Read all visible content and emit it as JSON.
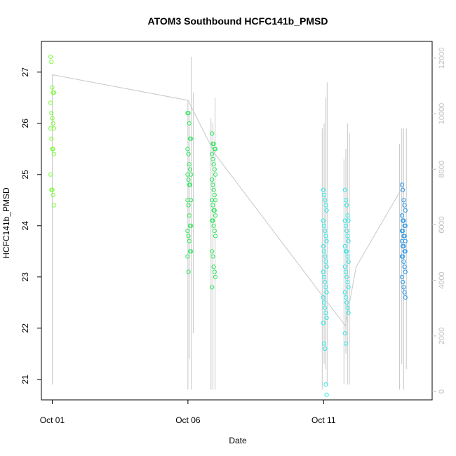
{
  "chart_data": {
    "type": "scatter",
    "title": "ATOM3 Southbound HCFC141b_PMSD",
    "xlabel": "Date",
    "ylabel": "HCFC141b_PMSD",
    "x_ticks": [
      {
        "label": "Oct 01",
        "day": 1.0
      },
      {
        "label": "Oct 06",
        "day": 6.0
      },
      {
        "label": "Oct 11",
        "day": 11.0
      }
    ],
    "xlim_days": [
      0.6,
      15.0
    ],
    "ylim": [
      20.6,
      27.6
    ],
    "y_ticks": [
      21,
      22,
      23,
      24,
      25,
      26,
      27
    ],
    "right_axis": {
      "ylim": [
        -300,
        12600
      ],
      "ticks": [
        0,
        2000,
        4000,
        6000,
        8000,
        10000,
        12000
      ],
      "color": "#c0c0c0"
    },
    "line_color": "#c8c8c8",
    "trend_line": [
      {
        "day": 1.0,
        "y": 26.95
      },
      {
        "day": 6.0,
        "y": 26.45
      },
      {
        "day": 7.0,
        "y": 25.4
      },
      {
        "day": 11.0,
        "y": 22.6
      },
      {
        "day": 11.8,
        "y": 22.05
      },
      {
        "day": 12.2,
        "y": 23.2
      },
      {
        "day": 13.9,
        "y": 24.75
      }
    ],
    "vertical_series": [
      {
        "day": 1.0,
        "low": 20.9,
        "high": 26.95
      },
      {
        "day": 6.0,
        "low": 20.8,
        "high": 26.45
      },
      {
        "day": 6.05,
        "low": 21.4,
        "high": 26.2
      },
      {
        "day": 6.12,
        "low": 20.8,
        "high": 27.3
      },
      {
        "day": 6.2,
        "low": 21.9,
        "high": 26.6
      },
      {
        "day": 6.85,
        "low": 20.8,
        "high": 26.1
      },
      {
        "day": 6.92,
        "low": 20.8,
        "high": 26.0
      },
      {
        "day": 7.0,
        "low": 20.8,
        "high": 26.5
      },
      {
        "day": 10.95,
        "low": 20.8,
        "high": 25.9
      },
      {
        "day": 11.02,
        "low": 21.3,
        "high": 26.0
      },
      {
        "day": 11.08,
        "low": 21.2,
        "high": 26.5
      },
      {
        "day": 11.13,
        "low": 20.9,
        "high": 26.8
      },
      {
        "day": 11.75,
        "low": 20.9,
        "high": 25.3
      },
      {
        "day": 11.82,
        "low": 21.5,
        "high": 25.5
      },
      {
        "day": 11.88,
        "low": 20.9,
        "high": 26.0
      },
      {
        "day": 11.95,
        "low": 20.9,
        "high": 25.8
      },
      {
        "day": 13.8,
        "low": 20.8,
        "high": 25.6
      },
      {
        "day": 13.88,
        "low": 21.3,
        "high": 25.9
      },
      {
        "day": 13.95,
        "low": 20.8,
        "high": 25.9
      },
      {
        "day": 14.05,
        "low": 21.2,
        "high": 25.9
      }
    ],
    "point_groups": [
      {
        "day": 1.0,
        "color": "#7cfc3c",
        "values": [
          27.3,
          27.2,
          26.7,
          26.6,
          26.6,
          26.4,
          26.2,
          26.1,
          26.0,
          25.9,
          25.9,
          25.7,
          25.5,
          25.5,
          25.4,
          25.0,
          24.7,
          24.7,
          24.6,
          24.4
        ]
      },
      {
        "day": 6.05,
        "color": "#33e660",
        "values": [
          26.2,
          26.2,
          26.0,
          25.7,
          25.7,
          25.5,
          25.4,
          25.2,
          25.1,
          25.0,
          25.0,
          24.9,
          24.8,
          24.8,
          24.5,
          24.5,
          24.4,
          24.2,
          24.0,
          24.0,
          23.9,
          23.8,
          23.7,
          23.5,
          23.5,
          23.4,
          23.1
        ]
      },
      {
        "day": 6.95,
        "color": "#33e660",
        "values": [
          25.8,
          25.6,
          25.6,
          25.5,
          25.5,
          25.4,
          25.3,
          25.2,
          25.1,
          25.0,
          24.9,
          24.8,
          24.7,
          24.6,
          24.5,
          24.5,
          24.4,
          24.3,
          24.3,
          24.2,
          24.1,
          24.1,
          24.0,
          23.9,
          23.8,
          23.5,
          23.4,
          23.2,
          23.1,
          23.0,
          22.8
        ]
      },
      {
        "day": 11.05,
        "color": "#33e8e8",
        "values": [
          24.7,
          24.6,
          24.5,
          24.4,
          24.3,
          24.1,
          24.0,
          23.9,
          23.8,
          23.7,
          23.6,
          23.5,
          23.4,
          23.3,
          23.2,
          23.1,
          23.0,
          22.9,
          22.8,
          22.7,
          22.6,
          22.5,
          22.4,
          22.3,
          22.2,
          22.1,
          21.7,
          21.6,
          20.9,
          20.7
        ]
      },
      {
        "day": 11.85,
        "color": "#33e8e8",
        "values": [
          24.7,
          24.5,
          24.4,
          24.2,
          24.1,
          24.1,
          24.0,
          23.9,
          23.8,
          23.7,
          23.6,
          23.5,
          23.5,
          23.4,
          23.3,
          23.2,
          23.1,
          23.0,
          22.9,
          22.8,
          22.7,
          22.6,
          22.5,
          22.4,
          22.3,
          21.9,
          21.7
        ]
      },
      {
        "day": 13.95,
        "color": "#2a9ae8",
        "values": [
          24.8,
          24.7,
          24.5,
          24.4,
          24.3,
          24.2,
          24.1,
          24.1,
          24.0,
          24.0,
          23.9,
          23.9,
          23.8,
          23.8,
          23.7,
          23.7,
          23.6,
          23.6,
          23.5,
          23.5,
          23.4,
          23.4,
          23.3,
          23.2,
          23.1,
          23.0,
          22.9,
          22.8,
          22.7,
          22.6
        ]
      }
    ]
  }
}
